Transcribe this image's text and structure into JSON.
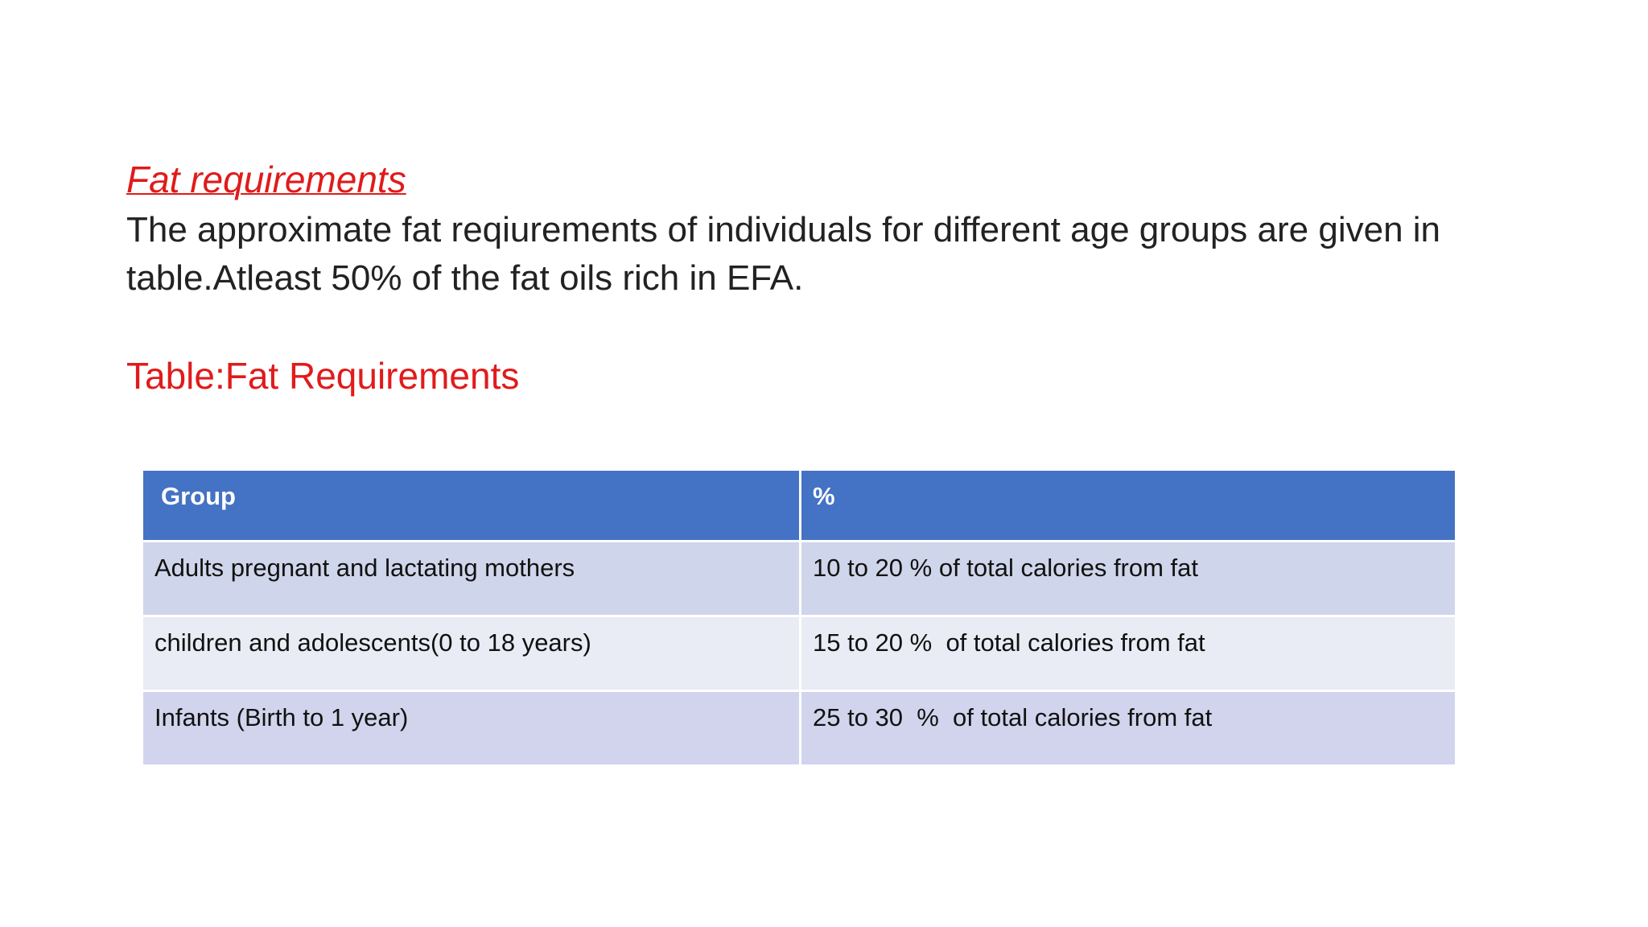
{
  "heading": "Fat requirements",
  "body": "The approximate fat reqiurements of individuals for different age groups are given in table.Atleast 50% of the fat oils rich in EFA.",
  "table_title": "Table:Fat Requirements",
  "table": {
    "header": [
      "Group",
      "%"
    ],
    "rows": [
      [
        "Adults pregnant and lactating mothers",
        "10 to 20 % of total calories from fat"
      ],
      [
        "children and adolescents(0 to 18 years)",
        "15 to 20 %  of total calories from fat"
      ],
      [
        "Infants (Birth to 1 year)",
        "25 to 30  %  of total calories from fat"
      ]
    ]
  }
}
